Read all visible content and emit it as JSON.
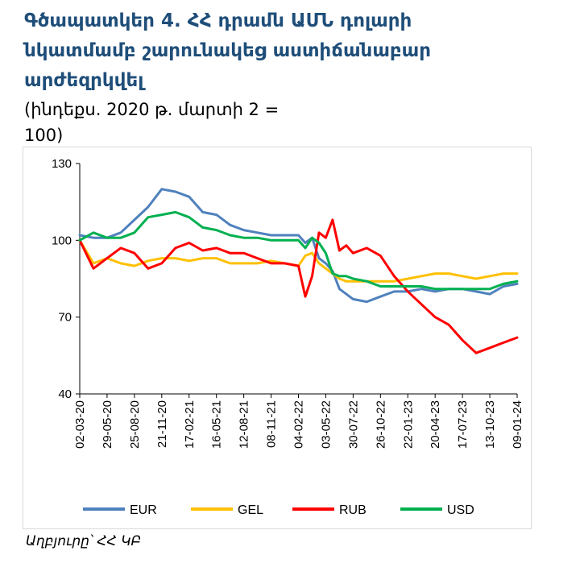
{
  "title": "Գծապատկեր 4.  ՀՀ դրամն ԱՄՆ դոլարի նկատմամբ շարունակեց աստիճանաբար արժեզրկվել",
  "subtitle": "(ինդեքս. 2020 թ. մարտի 2 = 100)",
  "source": "Աղբյուրը՝ ՀՀ ԿԲ",
  "chart_data": {
    "type": "line",
    "x_tick_labels": [
      "02-03-20",
      "29-05-20",
      "25-08-20",
      "21-11-20",
      "17-02-21",
      "16-05-21",
      "12-08-21",
      "08-11-21",
      "04-02-22",
      "03-05-22",
      "30-07-22",
      "26-10-22",
      "22-01-23",
      "20-04-23",
      "17-07-23",
      "13-10-23",
      "09-01-24"
    ],
    "y_tick_labels": [
      "130",
      "100",
      "70",
      "40"
    ],
    "ylim": [
      40,
      130
    ],
    "legend_position": "bottom",
    "grid": false,
    "x_points": [
      0,
      0.5,
      1,
      1.5,
      2,
      2.5,
      3,
      3.5,
      4,
      4.5,
      5,
      5.5,
      6,
      6.5,
      7,
      7.5,
      8,
      8.25,
      8.5,
      8.75,
      9,
      9.25,
      9.5,
      9.75,
      10,
      10.5,
      11,
      11.5,
      12,
      12.5,
      13,
      13.5,
      14,
      14.5,
      15,
      15.5,
      16
    ],
    "series": [
      {
        "name": "EUR",
        "color": "#4f81bd",
        "values": [
          102,
          101,
          101,
          103,
          108,
          113,
          120,
          119,
          117,
          111,
          110,
          106,
          104,
          103,
          102,
          102,
          102,
          99,
          101,
          93,
          91,
          88,
          81,
          79,
          77,
          76,
          78,
          80,
          80,
          81,
          80,
          81,
          81,
          80,
          79,
          82,
          83
        ]
      },
      {
        "name": "GEL",
        "color": "#ffc000",
        "values": [
          100,
          91,
          93,
          91,
          90,
          92,
          93,
          93,
          92,
          93,
          93,
          91,
          91,
          91,
          92,
          91,
          90,
          94,
          95,
          91,
          89,
          87,
          85,
          84,
          84,
          84,
          84,
          84,
          85,
          86,
          87,
          87,
          86,
          85,
          86,
          87,
          87
        ]
      },
      {
        "name": "RUB",
        "color": "#ff0000",
        "values": [
          100,
          89,
          93,
          97,
          95,
          89,
          91,
          97,
          99,
          96,
          97,
          95,
          95,
          93,
          91,
          91,
          90,
          78,
          86,
          103,
          101,
          108,
          96,
          98,
          95,
          97,
          94,
          86,
          80,
          75,
          70,
          67,
          61,
          56,
          58,
          60,
          62
        ]
      },
      {
        "name": "USD",
        "color": "#00b050",
        "values": [
          100,
          103,
          101,
          101,
          103,
          109,
          110,
          111,
          109,
          105,
          104,
          102,
          101,
          101,
          100,
          100,
          100,
          97,
          101,
          99,
          95,
          87,
          86,
          86,
          85,
          84,
          82,
          82,
          82,
          82,
          81,
          81,
          81,
          81,
          81,
          83,
          84
        ]
      }
    ]
  }
}
